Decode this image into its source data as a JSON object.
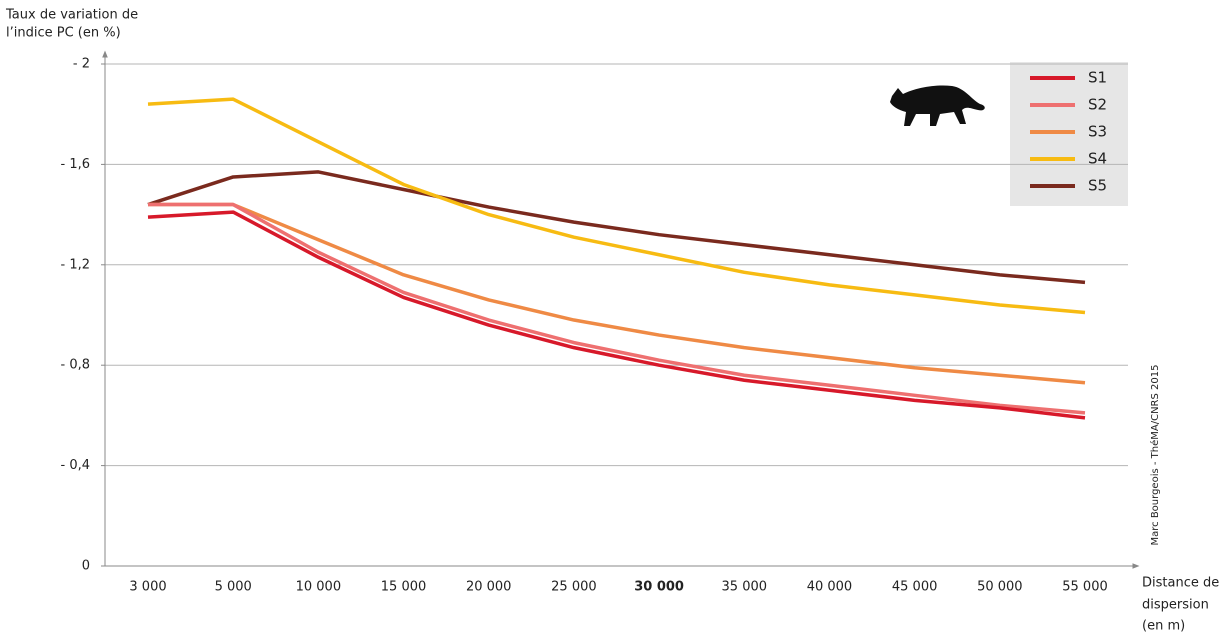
{
  "chart_data": {
    "type": "line",
    "y_axis_title": [
      "Taux de variation de",
      "l’indice PC (en %)"
    ],
    "x_axis_title": [
      "Distance de",
      "dispersion",
      "(en m)"
    ],
    "credit": "Marc Bourgeois - ThéMA/CNRS 2015",
    "categories": [
      "3 000",
      "5 000",
      "10 000",
      "15 000",
      "20 000",
      "25 000",
      "30 000",
      "35 000",
      "40 000",
      "45 000",
      "50 000",
      "55 000"
    ],
    "highlight_category": "30 000",
    "ylim": [
      0,
      -2
    ],
    "yticks": [
      0,
      {
        "value": -0.4,
        "label": "- 0,4"
      },
      {
        "value": -0.8,
        "label": "- 0,8"
      },
      {
        "value": -1.2,
        "label": "- 1,2"
      },
      {
        "value": -1.6,
        "label": "- 1,6"
      },
      {
        "value": -2,
        "label": "- 2"
      }
    ],
    "grid": true,
    "legend": "top-right",
    "series": [
      {
        "name": "S1",
        "color": "#d7192a",
        "values": [
          -1.39,
          -1.41,
          -1.23,
          -1.07,
          -0.96,
          -0.87,
          -0.8,
          -0.74,
          -0.7,
          -0.66,
          -0.63,
          -0.59
        ]
      },
      {
        "name": "S2",
        "color": "#ee7070",
        "values": [
          -1.44,
          -1.44,
          -1.25,
          -1.09,
          -0.98,
          -0.89,
          -0.82,
          -0.76,
          -0.72,
          -0.68,
          -0.64,
          -0.61
        ]
      },
      {
        "name": "S3",
        "color": "#ef8a45",
        "values": [
          -1.44,
          -1.44,
          -1.3,
          -1.16,
          -1.06,
          -0.98,
          -0.92,
          -0.87,
          -0.83,
          -0.79,
          -0.76,
          -0.73
        ]
      },
      {
        "name": "S4",
        "color": "#f7bb12",
        "values": [
          -1.84,
          -1.86,
          -1.69,
          -1.52,
          -1.4,
          -1.31,
          -1.24,
          -1.17,
          -1.12,
          -1.08,
          -1.04,
          -1.01
        ]
      },
      {
        "name": "S5",
        "color": "#7a2a1e",
        "values": [
          -1.44,
          -1.55,
          -1.57,
          -1.5,
          -1.43,
          -1.37,
          -1.32,
          -1.28,
          -1.24,
          -1.2,
          -1.16,
          -1.13
        ]
      }
    ]
  }
}
